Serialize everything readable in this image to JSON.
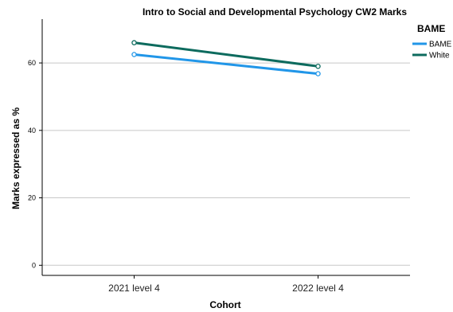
{
  "chart_data": {
    "type": "line",
    "title": "Intro to Social and Developmental Psychology CW2 Marks",
    "xlabel": "Cohort",
    "ylabel": "Marks expressed as %",
    "categories": [
      "2021 level 4",
      "2022 level 4"
    ],
    "ylim": [
      -3,
      73
    ],
    "yticks": [
      0,
      20,
      40,
      60
    ],
    "grid": "horizontal",
    "legend_title": "BAME",
    "legend_position": "top-right",
    "series": [
      {
        "name": "BAME",
        "color": "#2196e8",
        "values": [
          62.5,
          56.8
        ]
      },
      {
        "name": "White",
        "color": "#0d6b5e",
        "values": [
          66.0,
          59.0
        ]
      }
    ]
  }
}
